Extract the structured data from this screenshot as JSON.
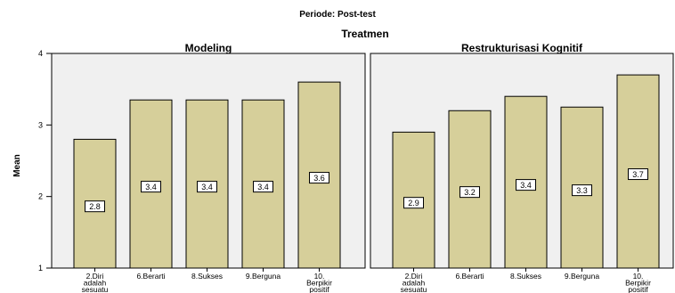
{
  "chart_data": {
    "type": "bar",
    "title": "Periode: Post-test",
    "group_title": "Treatmen",
    "ylabel": "Mean",
    "ylim": [
      1,
      4
    ],
    "yticks": [
      1,
      2,
      3,
      4
    ],
    "grid": false,
    "bar_color": "#d6cf9a",
    "panel_color": "#f0f0f0",
    "panels": [
      {
        "title": "Modeling",
        "categories": [
          [
            "2.Diri",
            "adalah",
            "sesuatu"
          ],
          [
            "6.Berarti"
          ],
          [
            "8.Sukses"
          ],
          [
            "9.Berguna"
          ],
          [
            "10.",
            "Berpikir",
            "positif"
          ]
        ],
        "values": [
          2.8,
          3.35,
          3.35,
          3.35,
          3.6
        ],
        "labels": [
          "2.8",
          "3.4",
          "3.4",
          "3.4",
          "3.6"
        ]
      },
      {
        "title": "Restrukturisasi Kognitif",
        "categories": [
          [
            "2.Diri",
            "adalah",
            "sesuatu"
          ],
          [
            "6.Berarti"
          ],
          [
            "8.Sukses"
          ],
          [
            "9.Berguna"
          ],
          [
            "10.",
            "Berpikir",
            "positif"
          ]
        ],
        "values": [
          2.9,
          3.2,
          3.4,
          3.25,
          3.7
        ],
        "labels": [
          "2.9",
          "3.2",
          "3.4",
          "3.3",
          "3.7"
        ]
      }
    ]
  }
}
